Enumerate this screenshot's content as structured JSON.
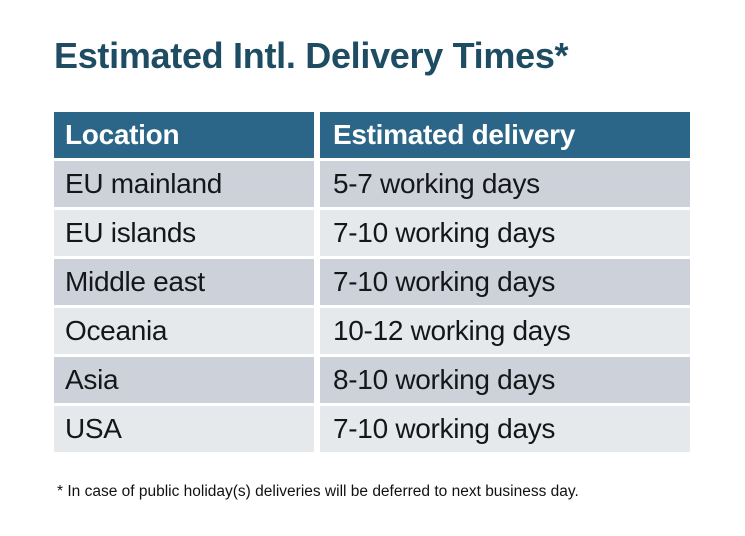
{
  "title": "Estimated Intl. Delivery Times*",
  "footnote": "* In case of public holiday(s) deliveries will be deferred to next business day.",
  "table": {
    "columns": [
      {
        "label": "Location"
      },
      {
        "label": "Estimated delivery"
      }
    ],
    "rows": [
      {
        "location": "EU mainland",
        "delivery": "5-7 working days"
      },
      {
        "location": "EU islands",
        "delivery": "7-10 working days"
      },
      {
        "location": "Middle east",
        "delivery": "7-10 working days"
      },
      {
        "location": "Oceania",
        "delivery": "10-12 working days"
      },
      {
        "location": "Asia",
        "delivery": "8-10 working days"
      },
      {
        "location": "USA",
        "delivery": "7-10 working days"
      }
    ]
  },
  "colors": {
    "background": "#ffffff",
    "title_text": "#1d4c63",
    "header_bg": "#2b6587",
    "header_text": "#ffffff",
    "row_dark_bg": "#cdd1d9",
    "row_light_bg": "#e6e9ec",
    "body_text": "#15161a",
    "footnote_text": "#111111"
  }
}
